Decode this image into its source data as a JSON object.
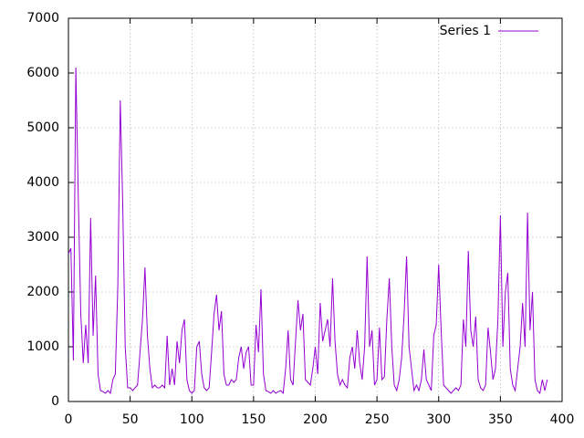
{
  "chart_data": {
    "type": "line",
    "x": [
      0,
      2,
      4,
      6,
      8,
      10,
      12,
      14,
      16,
      18,
      20,
      22,
      24,
      26,
      28,
      30,
      32,
      34,
      36,
      38,
      40,
      42,
      44,
      46,
      48,
      50,
      52,
      54,
      56,
      58,
      60,
      62,
      64,
      66,
      68,
      70,
      72,
      74,
      76,
      78,
      80,
      82,
      84,
      86,
      88,
      90,
      92,
      94,
      96,
      98,
      100,
      102,
      104,
      106,
      108,
      110,
      112,
      114,
      116,
      118,
      120,
      122,
      124,
      126,
      128,
      130,
      132,
      134,
      136,
      138,
      140,
      142,
      144,
      146,
      148,
      150,
      152,
      154,
      156,
      158,
      160,
      162,
      164,
      166,
      168,
      170,
      172,
      174,
      176,
      178,
      180,
      182,
      184,
      186,
      188,
      190,
      192,
      194,
      196,
      198,
      200,
      202,
      204,
      206,
      208,
      210,
      212,
      214,
      216,
      218,
      220,
      222,
      224,
      226,
      228,
      230,
      232,
      234,
      236,
      238,
      240,
      242,
      244,
      246,
      248,
      250,
      252,
      254,
      256,
      258,
      260,
      262,
      264,
      266,
      268,
      270,
      272,
      274,
      276,
      278,
      280,
      282,
      284,
      286,
      288,
      290,
      292,
      294,
      296,
      298,
      300,
      302,
      304,
      306,
      308,
      310,
      312,
      314,
      316,
      318,
      320,
      322,
      324,
      326,
      328,
      330,
      332,
      334,
      336,
      338,
      340,
      342,
      344,
      346,
      348,
      350,
      352,
      354,
      356,
      358,
      360,
      362,
      364,
      366,
      368,
      370,
      372,
      374,
      376,
      378,
      380,
      382,
      384,
      386,
      388
    ],
    "series": [
      {
        "name": "Series 1",
        "color": "#9400d3",
        "values": [
          2700,
          2800,
          750,
          6100,
          3700,
          1600,
          700,
          1400,
          700,
          3350,
          1200,
          2300,
          500,
          200,
          180,
          150,
          200,
          150,
          400,
          500,
          2100,
          5500,
          3600,
          1000,
          250,
          250,
          200,
          250,
          300,
          900,
          1500,
          2450,
          1200,
          600,
          250,
          300,
          250,
          250,
          300,
          250,
          1200,
          300,
          600,
          300,
          1100,
          700,
          1300,
          1500,
          400,
          200,
          150,
          200,
          1000,
          1100,
          500,
          250,
          200,
          250,
          900,
          1600,
          1950,
          1300,
          1650,
          500,
          300,
          300,
          400,
          350,
          400,
          800,
          1000,
          600,
          900,
          1000,
          300,
          300,
          1400,
          900,
          2050,
          500,
          200,
          180,
          150,
          200,
          150,
          180,
          200,
          150,
          600,
          1300,
          400,
          300,
          1100,
          1850,
          1300,
          1600,
          400,
          350,
          300,
          600,
          1000,
          500,
          1800,
          1100,
          1300,
          1500,
          1000,
          2250,
          1100,
          500,
          300,
          400,
          300,
          250,
          800,
          1000,
          600,
          1300,
          700,
          400,
          1000,
          2650,
          1000,
          1300,
          300,
          400,
          1350,
          400,
          450,
          1500,
          2250,
          1000,
          300,
          200,
          400,
          800,
          1600,
          2650,
          1000,
          600,
          200,
          300,
          200,
          400,
          950,
          400,
          300,
          200,
          1200,
          1400,
          2500,
          1300,
          300,
          250,
          200,
          150,
          200,
          250,
          200,
          300,
          1500,
          1000,
          2750,
          1300,
          1000,
          1550,
          400,
          250,
          200,
          300,
          1350,
          900,
          400,
          600,
          1500,
          3400,
          1000,
          2000,
          2350,
          600,
          300,
          200,
          600,
          1000,
          1800,
          1000,
          3450,
          1300,
          2000,
          400,
          200,
          150,
          400,
          200,
          400
        ]
      }
    ],
    "xlim": [
      0,
      400
    ],
    "xticks": [
      0,
      50,
      100,
      150,
      200,
      250,
      300,
      350,
      400
    ],
    "ylim": [
      0,
      7000
    ],
    "yticks": [
      0,
      1000,
      2000,
      3000,
      4000,
      5000,
      6000,
      7000
    ],
    "grid": true,
    "legend": "top-right"
  }
}
